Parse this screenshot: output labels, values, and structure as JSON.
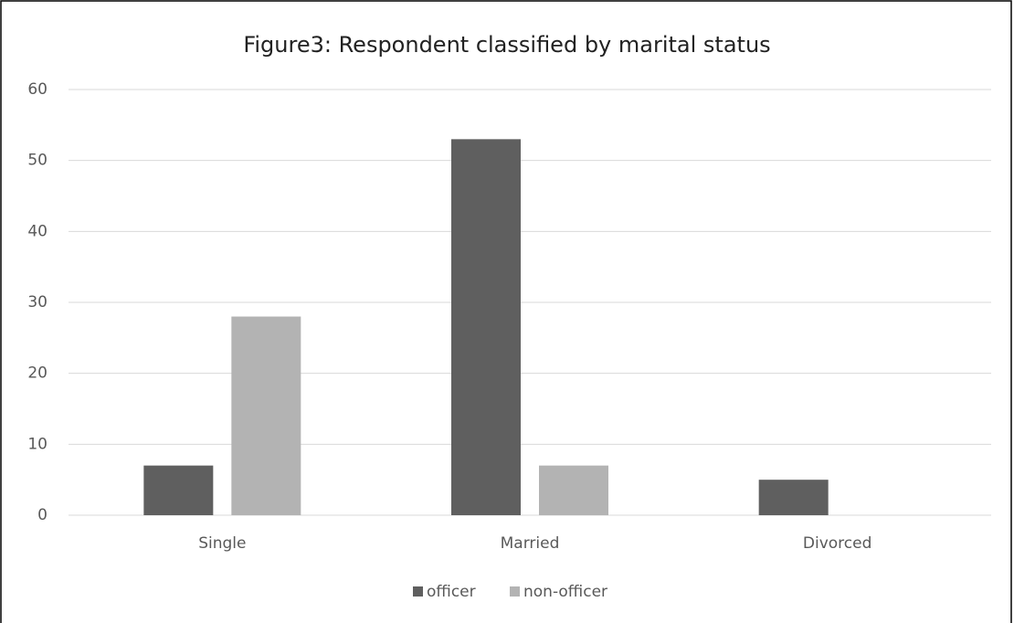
{
  "chart_data": {
    "type": "bar",
    "title": "Figure3: Respondent classified by marital status",
    "categories": [
      "Single",
      "Married",
      "Divorced"
    ],
    "series": [
      {
        "name": "officer",
        "color": "#5f5f5f",
        "values": [
          7,
          53,
          5
        ]
      },
      {
        "name": "non-officer",
        "color": "#b3b3b3",
        "values": [
          28,
          7,
          0
        ]
      }
    ],
    "ylim": [
      0,
      60
    ],
    "yticks": [
      0,
      10,
      20,
      30,
      40,
      50,
      60
    ],
    "grid": true,
    "legend": "bottom"
  }
}
